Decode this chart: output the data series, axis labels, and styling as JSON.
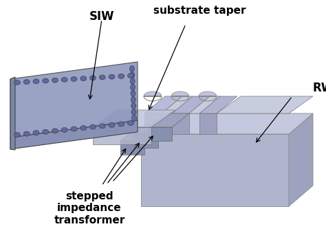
{
  "background_color": "#ffffff",
  "siw_top_color": "#9099bf",
  "siw_side_color": "#7a85a8",
  "siw_front_color": "#8890b5",
  "rwg_top_color": "#c5c9df",
  "rwg_front_color": "#b0b5ce",
  "rwg_right_color": "#9da3bf",
  "rwg_side_color": "#a8adc8",
  "taper_color": "#bbbfd8",
  "step_top_color": "#9ba3c0",
  "step_side_color": "#8890b0",
  "via_color": "#6068a0",
  "label_SIW": "SIW",
  "label_substrate_taper": "substrate taper",
  "label_RWG": "RWG",
  "label_stepped": "stepped\nimpedance\ntransformer"
}
